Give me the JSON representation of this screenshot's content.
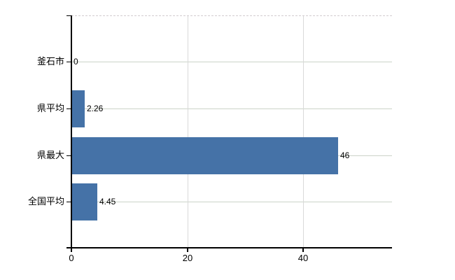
{
  "chart_data": {
    "type": "bar",
    "orientation": "horizontal",
    "title": "",
    "xlabel": "",
    "ylabel": "",
    "categories": [
      "釜石市",
      "県平均",
      "県最大",
      "全国平均"
    ],
    "values": [
      0,
      2.26,
      46,
      4.45
    ],
    "value_labels": [
      "0",
      "2.26",
      "46",
      "4.45"
    ],
    "x_ticks": [
      0,
      20,
      40
    ],
    "x_tick_labels": [
      "0",
      "20",
      "40"
    ],
    "xlim": [
      0,
      55.4
    ],
    "grid": true,
    "legend": false,
    "gridlines": "horizontal per category, vertical at x ticks, dashed line at top"
  },
  "colors": {
    "bar": "#4572a7",
    "axis": "#000000",
    "gridline_horizontal": "#ccd3c8",
    "gridline_vertical": "#d9d9d9",
    "gridline_top_dashed": "#d3ccd0",
    "text": "#000000",
    "background": "#ffffff"
  }
}
